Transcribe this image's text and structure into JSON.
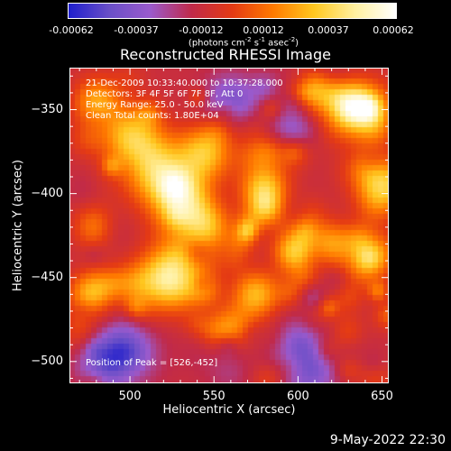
{
  "colorbar": {
    "ticks": [
      "-0.00062",
      "-0.00037",
      "-0.00012",
      "0.00012",
      "0.00037",
      "0.00062"
    ],
    "tick_values": [
      -0.00062,
      -0.00037,
      -0.00012,
      0.00012,
      0.00037,
      0.00062
    ],
    "unit_parts": [
      "(photons cm",
      "-2",
      " s",
      "-1",
      " asec",
      "-2",
      ")"
    ]
  },
  "title": "Reconstructed RHESSI Image",
  "annotations": {
    "line1": "21-Dec-2009 10:33:40.000 to 10:37:28.000",
    "line2": "Detectors: 3F 4F 5F 6F 7F 8F, Att 0",
    "line3": "Energy Range: 25.0 - 50.0 keV",
    "line4": "Clean     Total counts: 1.80E+04",
    "peak": "Position of Peak = [526,-452]"
  },
  "footer": "9-May-2022 22:30",
  "chart_data": {
    "type": "heatmap",
    "title": "Reconstructed RHESSI Image",
    "xlabel": "Heliocentric X (arcsec)",
    "ylabel": "Heliocentric Y (arcsec)",
    "xlim": [
      464,
      654
    ],
    "ylim": [
      -513,
      -325
    ],
    "xticks": [
      500,
      550,
      600,
      650
    ],
    "yticks": [
      -350,
      -400,
      -450,
      -500
    ],
    "zlim": [
      -0.00062,
      0.00062
    ],
    "colormap": [
      "#1e1ecc",
      "#6a4fc8",
      "#9a5acc",
      "#c02a4a",
      "#e43a14",
      "#ff7a00",
      "#ffc820",
      "#fff0a0",
      "#ffffff"
    ],
    "peak_position": [
      526,
      -452
    ],
    "sources": [
      {
        "x": 525,
        "y": -450,
        "intensity": 0.00062,
        "radius": 13
      },
      {
        "x": 535,
        "y": -408,
        "intensity": 0.00052,
        "radius": 14
      },
      {
        "x": 515,
        "y": -385,
        "intensity": 0.00045,
        "radius": 14
      },
      {
        "x": 500,
        "y": -365,
        "intensity": 0.00038,
        "radius": 12
      },
      {
        "x": 545,
        "y": -375,
        "intensity": 0.0004,
        "radius": 11
      },
      {
        "x": 580,
        "y": -395,
        "intensity": 0.00038,
        "radius": 10
      },
      {
        "x": 575,
        "y": -460,
        "intensity": 0.0004,
        "radius": 10
      },
      {
        "x": 600,
        "y": -430,
        "intensity": 0.00034,
        "radius": 9
      },
      {
        "x": 640,
        "y": -350,
        "intensity": 0.0004,
        "radius": 12
      },
      {
        "x": 650,
        "y": -395,
        "intensity": 0.00048,
        "radius": 11
      },
      {
        "x": 640,
        "y": -440,
        "intensity": 0.00036,
        "radius": 10
      },
      {
        "x": 480,
        "y": -345,
        "intensity": 0.00035,
        "radius": 10
      },
      {
        "x": 480,
        "y": -420,
        "intensity": 0.00032,
        "radius": 9
      },
      {
        "x": 475,
        "y": -460,
        "intensity": 0.0003,
        "radius": 9
      },
      {
        "x": 560,
        "y": -480,
        "intensity": 0.0003,
        "radius": 9
      },
      {
        "x": 610,
        "y": -345,
        "intensity": 0.00025,
        "radius": 9
      }
    ],
    "negative_regions": [
      {
        "x": 495,
        "y": -495,
        "intensity": -0.0004,
        "radius": 13
      },
      {
        "x": 605,
        "y": -500,
        "intensity": -0.00035,
        "radius": 14
      },
      {
        "x": 600,
        "y": -360,
        "intensity": -0.0003,
        "radius": 12
      },
      {
        "x": 560,
        "y": -345,
        "intensity": -0.0003,
        "radius": 11
      }
    ]
  }
}
